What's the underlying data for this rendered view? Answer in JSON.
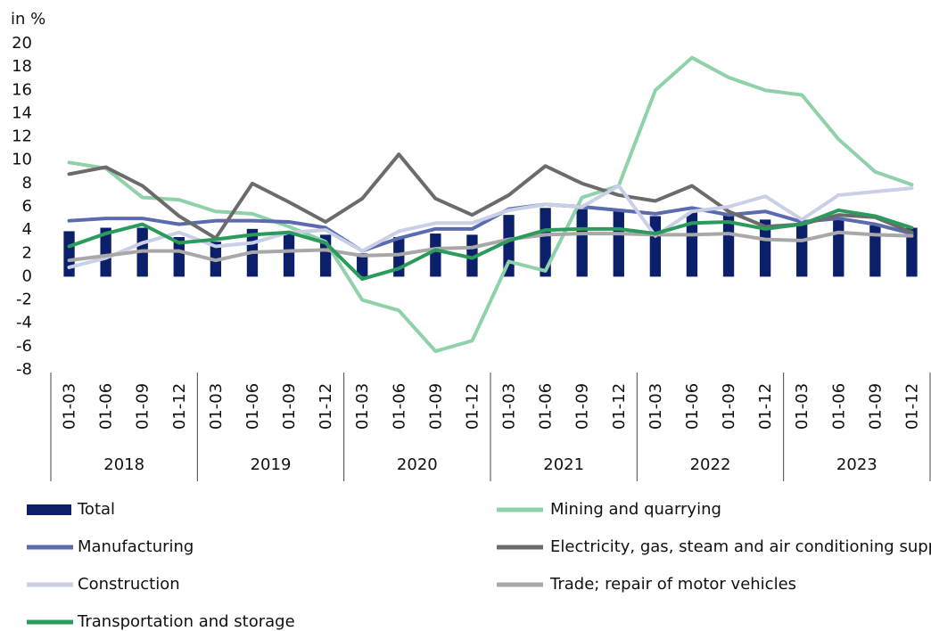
{
  "chart_data": {
    "type": "combo",
    "y_label": "in %",
    "categories": [
      "01-03",
      "01-06",
      "01-09",
      "01-12",
      "01-03",
      "01-06",
      "01-09",
      "01-12",
      "01-03",
      "01-06",
      "01-09",
      "01-12",
      "01-03",
      "01-06",
      "01-09",
      "01-12",
      "01-03",
      "01-06",
      "01-09",
      "01-12",
      "01-03",
      "01-06",
      "01-09",
      "01-12"
    ],
    "groups": [
      "2018",
      "2019",
      "2020",
      "2021",
      "2022",
      "2023"
    ],
    "ylim": [
      -8,
      20
    ],
    "yticks": [
      -8,
      -6,
      -4,
      -2,
      0,
      2,
      4,
      6,
      8,
      10,
      12,
      14,
      16,
      18,
      20
    ],
    "grid": false,
    "series": [
      {
        "name": "Total",
        "type": "bar",
        "color": "#0b1f6b",
        "values": [
          3.9,
          4.2,
          4.2,
          3.4,
          3.0,
          4.1,
          3.9,
          3.6,
          2.0,
          3.4,
          3.7,
          3.6,
          5.3,
          5.9,
          5.8,
          5.6,
          5.2,
          5.5,
          5.4,
          4.9,
          4.6,
          4.9,
          4.4,
          4.2
        ]
      },
      {
        "name": "Mining and quarrying",
        "type": "line",
        "color": "#8fd1a8",
        "values": [
          9.8,
          9.3,
          6.8,
          6.6,
          5.6,
          5.4,
          4.3,
          3.0,
          -2.0,
          -2.9,
          -6.4,
          -5.5,
          1.3,
          0.5,
          6.8,
          7.8,
          16.0,
          18.8,
          17.1,
          16.0,
          15.6,
          11.8,
          9.0,
          7.9
        ]
      },
      {
        "name": "Manufacturing",
        "type": "line",
        "color": "#5b6bae",
        "values": [
          4.8,
          5.0,
          5.0,
          4.5,
          4.8,
          4.8,
          4.7,
          4.2,
          2.2,
          3.3,
          4.1,
          4.1,
          5.8,
          6.2,
          6.0,
          5.7,
          5.4,
          5.9,
          5.3,
          5.6,
          4.7,
          5.0,
          4.5,
          3.7
        ]
      },
      {
        "name": "Electricity, gas, steam and air conditioning supply",
        "type": "line",
        "color": "#6b6b6b",
        "values": [
          8.8,
          9.4,
          7.8,
          5.2,
          3.3,
          8.0,
          6.4,
          4.7,
          6.7,
          10.5,
          6.7,
          5.3,
          7.0,
          9.5,
          8.0,
          7.0,
          6.5,
          7.8,
          5.6,
          4.3,
          4.5,
          5.3,
          5.1,
          3.8
        ]
      },
      {
        "name": "Construction",
        "type": "line",
        "color": "#c9cfe6",
        "values": [
          0.8,
          1.6,
          2.9,
          3.8,
          2.6,
          2.9,
          3.8,
          4.0,
          2.2,
          3.9,
          4.6,
          4.6,
          5.7,
          6.2,
          6.0,
          7.8,
          3.5,
          5.6,
          6.0,
          6.9,
          4.9,
          7.0,
          7.3,
          7.6
        ]
      },
      {
        "name": "Trade; repair of motor vehicles",
        "type": "line",
        "color": "#a8a8a8",
        "values": [
          1.4,
          1.8,
          2.2,
          2.2,
          1.4,
          2.1,
          2.2,
          2.3,
          1.8,
          1.9,
          2.4,
          2.5,
          3.2,
          3.6,
          3.7,
          3.7,
          3.6,
          3.6,
          3.7,
          3.2,
          3.1,
          3.8,
          3.6,
          3.5
        ]
      },
      {
        "name": "Transportation and storage",
        "type": "line",
        "color": "#2a9b5c",
        "values": [
          2.6,
          3.7,
          4.5,
          2.9,
          3.2,
          3.6,
          3.8,
          2.9,
          -0.2,
          0.7,
          2.3,
          1.6,
          3.1,
          4.0,
          4.1,
          4.1,
          3.7,
          4.6,
          4.7,
          4.1,
          4.5,
          5.7,
          5.2,
          4.2
        ]
      }
    ]
  }
}
